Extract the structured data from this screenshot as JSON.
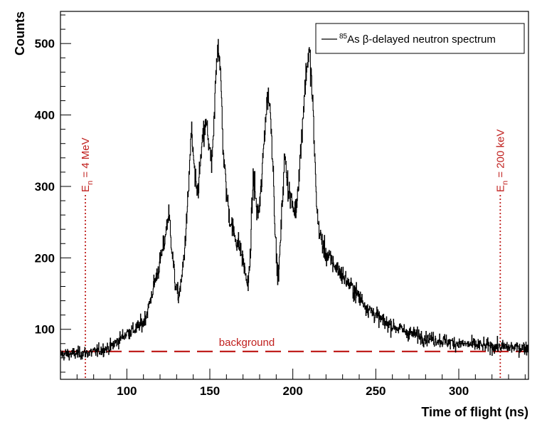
{
  "chart_data": {
    "type": "line",
    "title": "",
    "xlabel": "Time of flight (ns)",
    "ylabel": "Counts",
    "xlim": [
      60,
      342
    ],
    "ylim": [
      30,
      545
    ],
    "x_ticks": [
      100,
      150,
      200,
      250,
      300
    ],
    "y_ticks": [
      100,
      200,
      300,
      400,
      500
    ],
    "grid": false,
    "legend": {
      "placement": "top-right",
      "entries": [
        {
          "sup": "85",
          "label": "As β-delayed neutron spectrum"
        }
      ]
    },
    "series": [
      {
        "name": "85As β-delayed neutron spectrum",
        "color": "#000000",
        "x": [
          60,
          70,
          80,
          90,
          95,
          100,
          105,
          110,
          113,
          116,
          119,
          122,
          124,
          125,
          126,
          127,
          129,
          131,
          133,
          135,
          137,
          138,
          139,
          140,
          141,
          142,
          143,
          144,
          145,
          146,
          147,
          148,
          149,
          150,
          151,
          152,
          153,
          154,
          155,
          156,
          157,
          158,
          160,
          162,
          165,
          168,
          170,
          172,
          173,
          174,
          175,
          176,
          177,
          178,
          179,
          180,
          181,
          182,
          183,
          184,
          185,
          186,
          187,
          188,
          189,
          190,
          191,
          192,
          193,
          194,
          195,
          196,
          197,
          198,
          199,
          200,
          201,
          202,
          203,
          204,
          205,
          206,
          207,
          208,
          209,
          210,
          211,
          212,
          213,
          214,
          215,
          217,
          220,
          225,
          230,
          235,
          240,
          245,
          250,
          255,
          260,
          270,
          280,
          290,
          300,
          310,
          320,
          330,
          342
        ],
        "values": [
          65,
          66,
          68,
          75,
          85,
          95,
          100,
          110,
          130,
          160,
          185,
          215,
          245,
          262,
          245,
          215,
          165,
          145,
          170,
          220,
          290,
          345,
          375,
          340,
          310,
          290,
          300,
          325,
          350,
          370,
          380,
          385,
          370,
          345,
          330,
          360,
          420,
          480,
          505,
          470,
          420,
          350,
          290,
          255,
          230,
          215,
          195,
          170,
          160,
          190,
          250,
          310,
          300,
          270,
          260,
          275,
          300,
          340,
          380,
          410,
          430,
          415,
          380,
          330,
          260,
          200,
          170,
          200,
          250,
          300,
          340,
          325,
          300,
          290,
          280,
          270,
          265,
          270,
          300,
          330,
          360,
          400,
          430,
          460,
          480,
          485,
          455,
          410,
          350,
          290,
          250,
          225,
          205,
          190,
          175,
          160,
          145,
          130,
          120,
          110,
          105,
          95,
          88,
          84,
          80,
          78,
          76,
          75,
          74
        ]
      }
    ],
    "background_level": 69,
    "background_label": "background",
    "markers": [
      {
        "x": 75,
        "label_main": "E",
        "label_sub": "n",
        "label_rest": " = 4 MeV",
        "color": "#c0201e"
      },
      {
        "x": 325,
        "label_main": "E",
        "label_sub": "n",
        "label_rest": " = 200 keV",
        "color": "#c0201e"
      }
    ]
  }
}
